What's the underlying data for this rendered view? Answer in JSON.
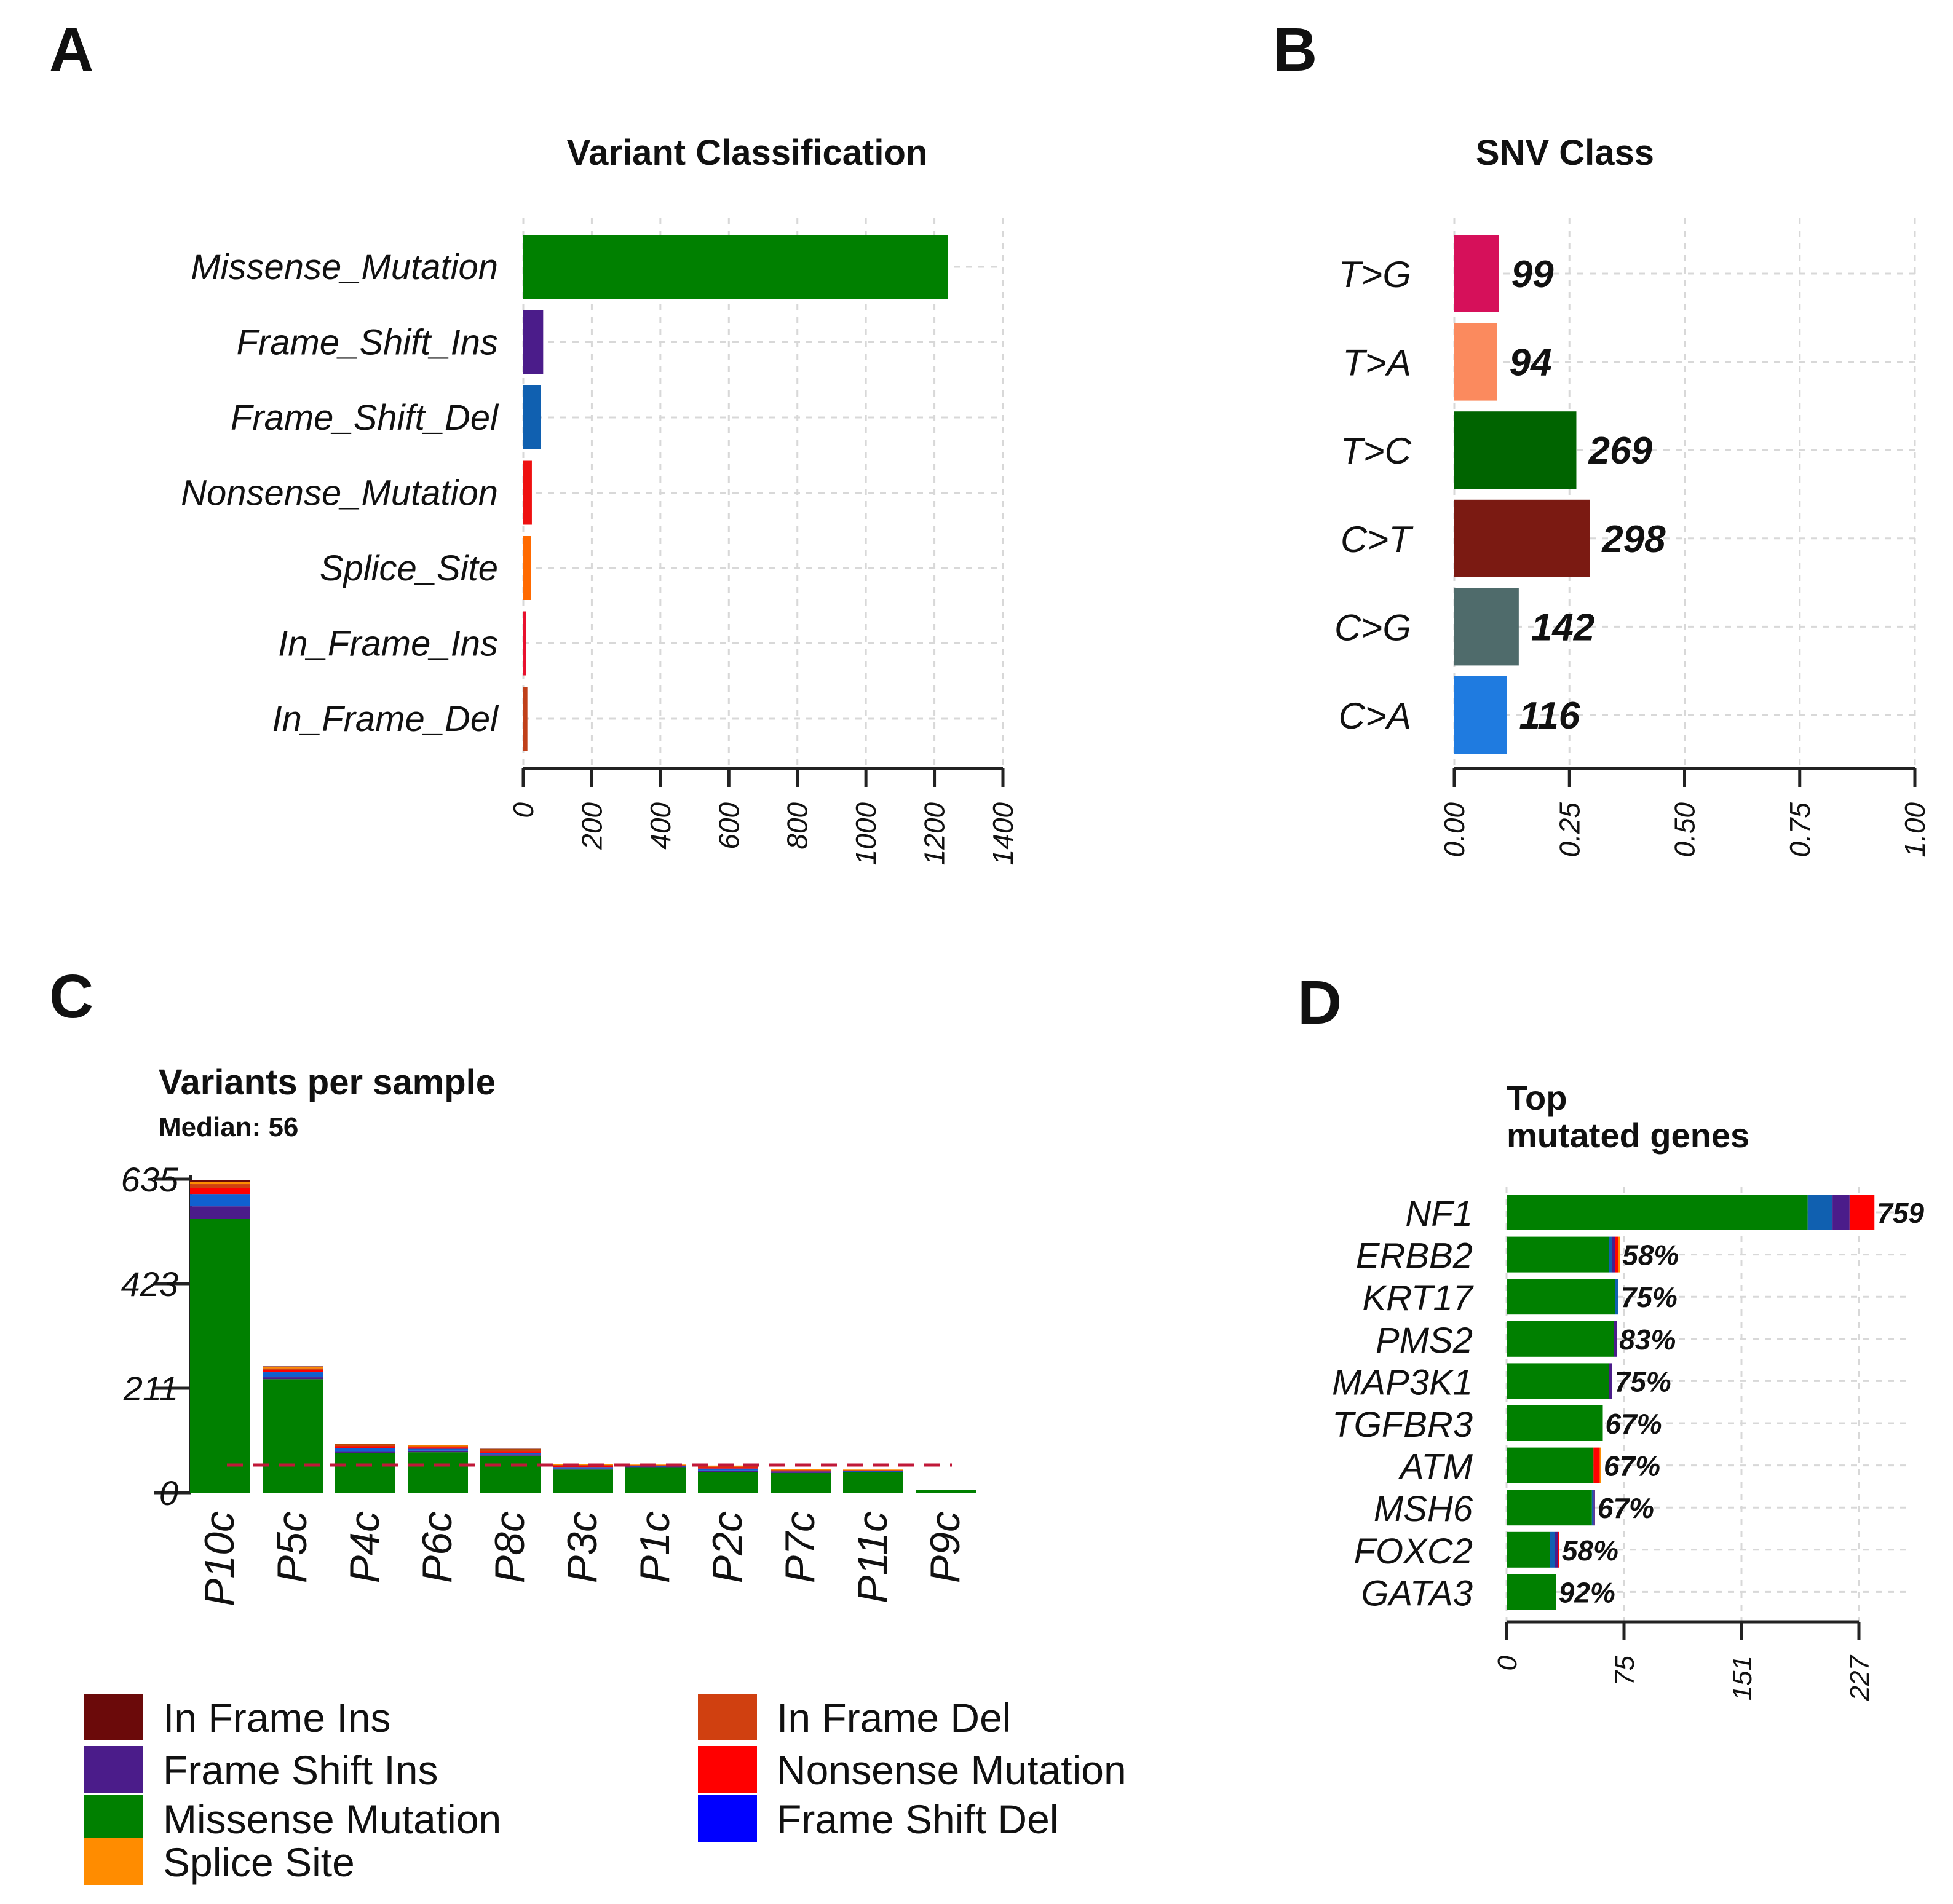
{
  "chart_data": [
    {
      "panel": "A",
      "type": "bar",
      "orientation": "horizontal",
      "title": "Variant Classification",
      "categories": [
        "Missense_Mutation",
        "Frame_Shift_Ins",
        "Frame_Shift_Del",
        "Nonsense_Mutation",
        "Splice_Site",
        "In_Frame_Ins",
        "In_Frame_Del"
      ],
      "values": [
        1240,
        58,
        52,
        25,
        22,
        8,
        12
      ],
      "colors": [
        "#008000",
        "#4b1c8a",
        "#1060b0",
        "#ee1111",
        "#ff6a00",
        "#e8112e",
        "#c0401a"
      ],
      "xlim": [
        0,
        1400
      ],
      "xticks": [
        "0",
        "200",
        "400",
        "600",
        "800",
        "1000",
        "1200",
        "1400"
      ],
      "grid": true
    },
    {
      "panel": "B",
      "type": "bar",
      "orientation": "horizontal",
      "title": "SNV Class",
      "categories": [
        "T>G",
        "T>A",
        "T>C",
        "C>T",
        "C>G",
        "C>A"
      ],
      "values": [
        0.097,
        0.093,
        0.265,
        0.294,
        0.14,
        0.114
      ],
      "labels": [
        "99",
        "94",
        "269",
        "298",
        "142",
        "116"
      ],
      "colors": [
        "#d6105a",
        "#fb8a5e",
        "#006400",
        "#7b1a12",
        "#4f6b6b",
        "#1f7be0"
      ],
      "xlim": [
        0,
        1
      ],
      "xticks": [
        "0.00",
        "0.25",
        "0.50",
        "0.75",
        "1.00"
      ],
      "grid": true
    },
    {
      "panel": "C",
      "type": "bar",
      "stacked": true,
      "title": "Variants per sample",
      "subtitle": "Median: 56",
      "categories": [
        "P10c",
        "P5c",
        "P4c",
        "P6c",
        "P8c",
        "P3c",
        "P1c",
        "P2c",
        "P7c",
        "P11c",
        "P9c"
      ],
      "series": [
        {
          "name": "Missense Mutation",
          "color": "#008000",
          "values": [
            555,
            230,
            80,
            82,
            75,
            47,
            52,
            42,
            40,
            42,
            5
          ]
        },
        {
          "name": "Frame Shift Ins",
          "color": "#4b1c8a",
          "values": [
            25,
            4,
            4,
            3,
            3,
            2,
            1,
            3,
            1,
            1,
            0
          ]
        },
        {
          "name": "Frame Shift Del",
          "color": "#1060d0",
          "values": [
            25,
            10,
            6,
            4,
            3,
            3,
            1,
            4,
            2,
            1,
            0
          ]
        },
        {
          "name": "Nonsense Mutation",
          "color": "#ff0000",
          "values": [
            12,
            5,
            4,
            3,
            3,
            3,
            1,
            3,
            2,
            1,
            0
          ]
        },
        {
          "name": "In Frame Del",
          "color": "#d04010",
          "values": [
            8,
            3,
            2,
            2,
            2,
            1,
            1,
            1,
            1,
            1,
            0
          ]
        },
        {
          "name": "Splice Site",
          "color": "#ff8c00",
          "values": [
            5,
            3,
            2,
            2,
            2,
            2,
            1,
            2,
            2,
            1,
            0
          ]
        },
        {
          "name": "In Frame Ins",
          "color": "#6b0a0a",
          "values": [
            3,
            1,
            1,
            1,
            1,
            0,
            0,
            0,
            0,
            0,
            0
          ]
        }
      ],
      "median": 56,
      "ylim": [
        0,
        635
      ],
      "yticks": [
        "0",
        "211",
        "423",
        "635"
      ]
    },
    {
      "panel": "D",
      "type": "bar",
      "orientation": "horizontal",
      "stacked": true,
      "title": "Top\nmutated genes",
      "title_lines": [
        "Top",
        "mutated genes"
      ],
      "categories": [
        "NF1",
        "ERBB2",
        "KRT17",
        "PMS2",
        "MAP3K1",
        "TGFBR3",
        "ATM",
        "MSH6",
        "FOXC2",
        "GATA3"
      ],
      "percent_labels": [
        "759",
        "58%",
        "75%",
        "83%",
        "75%",
        "67%",
        "67%",
        "67%",
        "58%",
        "92%"
      ],
      "series": [
        {
          "name": "Missense Mutation",
          "color": "#008000",
          "values": [
            194,
            66,
            70,
            69,
            66,
            62,
            56,
            55,
            28,
            32
          ]
        },
        {
          "name": "Frame Shift Del",
          "color": "#1060b0",
          "values": [
            16,
            2,
            2,
            0,
            0,
            0,
            0,
            1,
            3,
            0
          ]
        },
        {
          "name": "Frame Shift Ins",
          "color": "#4b1c8a",
          "values": [
            11,
            2,
            0,
            2,
            2,
            0,
            0,
            1,
            2,
            0
          ]
        },
        {
          "name": "Nonsense Mutation",
          "color": "#ff0000",
          "values": [
            16,
            2,
            0,
            0,
            0,
            0,
            4,
            0,
            1,
            0
          ]
        },
        {
          "name": "Splice Site",
          "color": "#ff8c00",
          "values": [
            0,
            1,
            0,
            0,
            0,
            0,
            1,
            0,
            0,
            0
          ]
        }
      ],
      "xlim": [
        0,
        227
      ],
      "xticks": [
        "0",
        "75",
        "151",
        "227"
      ],
      "grid": true
    }
  ],
  "panels": {
    "a": "A",
    "b": "B",
    "c": "C",
    "d": "D"
  },
  "legend": [
    {
      "label": "In Frame Ins",
      "color": "#6b0a0a"
    },
    {
      "label": "In Frame Del",
      "color": "#d04010"
    },
    {
      "label": "Frame Shift Ins",
      "color": "#4b1c8a"
    },
    {
      "label": "Nonsense Mutation",
      "color": "#ff0000"
    },
    {
      "label": "Missense Mutation",
      "color": "#008000"
    },
    {
      "label": "Frame Shift Del",
      "color": "#0000ff"
    },
    {
      "label": "Splice Site",
      "color": "#ff8c00"
    }
  ]
}
